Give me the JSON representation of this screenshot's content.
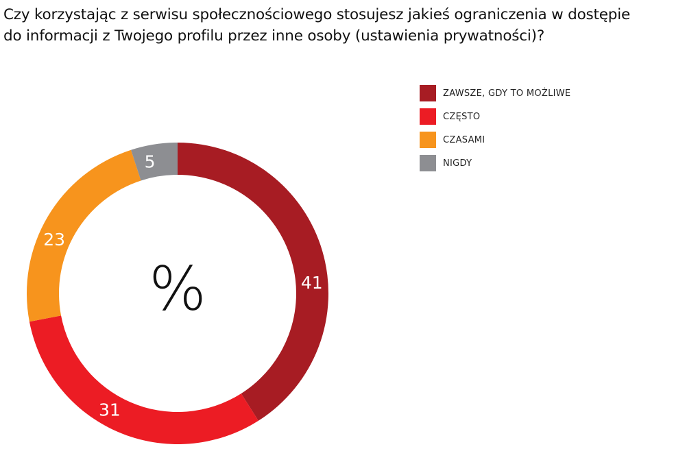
{
  "title": {
    "line1": "Czy korzystając z serwisu społecznościowego stosujesz jakieś ograniczenia w dostępie",
    "line2": "do informacji z Twojego profilu przez inne osoby (ustawienia prywatności)?"
  },
  "center_label": "%",
  "legend": [
    {
      "label": "ZAWSZE, GDY TO MOŻLIWE",
      "color": "#a71c23"
    },
    {
      "label": "CZĘSTO",
      "color": "#ec1c24"
    },
    {
      "label": "CZASAMI",
      "color": "#f7941d"
    },
    {
      "label": "NIGDY",
      "color": "#8d8e92"
    }
  ],
  "chart_data": {
    "type": "pie",
    "variant": "donut",
    "title": "Czy korzystając z serwisu społecznościowego stosujesz jakieś ograniczenia w dostępie do informacji z Twojego profilu przez inne osoby (ustawienia prywatności)?",
    "unit": "%",
    "categories": [
      "ZAWSZE, GDY TO MOŻLIWE",
      "CZĘSTO",
      "CZASAMI",
      "NIGDY"
    ],
    "values": [
      41,
      31,
      23,
      5
    ],
    "colors": [
      "#a71c23",
      "#ec1c24",
      "#f7941d",
      "#8d8e92"
    ],
    "labels": [
      "41",
      "31",
      "23",
      "5"
    ],
    "start_angle": "12 o'clock, clockwise",
    "legend_position": "right"
  }
}
